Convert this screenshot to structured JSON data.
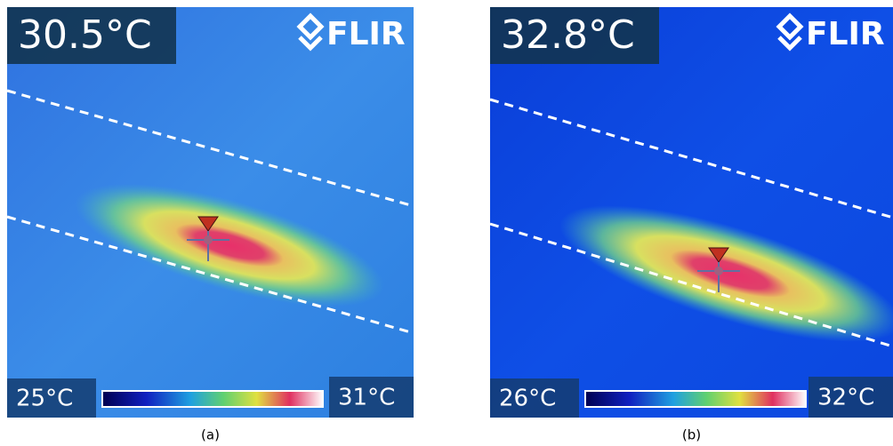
{
  "panels": [
    {
      "reading": "30.5°C",
      "logo": "FLIR",
      "scale_min": "25°C",
      "scale_max": "31°C",
      "caption": "(a)"
    },
    {
      "reading": "32.8°C",
      "logo": "FLIR",
      "scale_min": "26°C",
      "scale_max": "32°C",
      "caption": "(b)"
    }
  ]
}
